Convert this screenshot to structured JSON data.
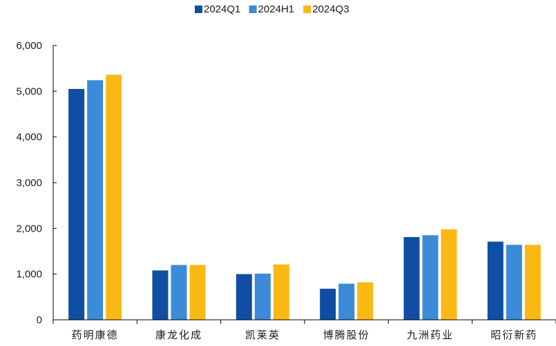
{
  "chart_data": {
    "type": "bar",
    "title": "",
    "xlabel": "",
    "ylabel": "",
    "ylim": [
      0,
      6000
    ],
    "yticks": [
      "0",
      "1,000",
      "2,000",
      "3,000",
      "4,000",
      "5,000",
      "6,000"
    ],
    "ytick_values": [
      0,
      1000,
      2000,
      3000,
      4000,
      5000,
      6000
    ],
    "categories": [
      "药明康德",
      "康龙化成",
      "凯莱英",
      "博腾股份",
      "九洲药业",
      "昭衍新药"
    ],
    "series": [
      {
        "name": "2024Q1",
        "color": "#0f4ea2",
        "values": [
          5050,
          1080,
          1000,
          680,
          1810,
          1710
        ]
      },
      {
        "name": "2024H1",
        "color": "#3b8bd8",
        "values": [
          5240,
          1200,
          1010,
          790,
          1850,
          1640
        ]
      },
      {
        "name": "2024Q3",
        "color": "#f9b814",
        "values": [
          5360,
          1200,
          1210,
          820,
          1980,
          1640
        ]
      }
    ],
    "legend_position": "top-center",
    "grid": false
  }
}
